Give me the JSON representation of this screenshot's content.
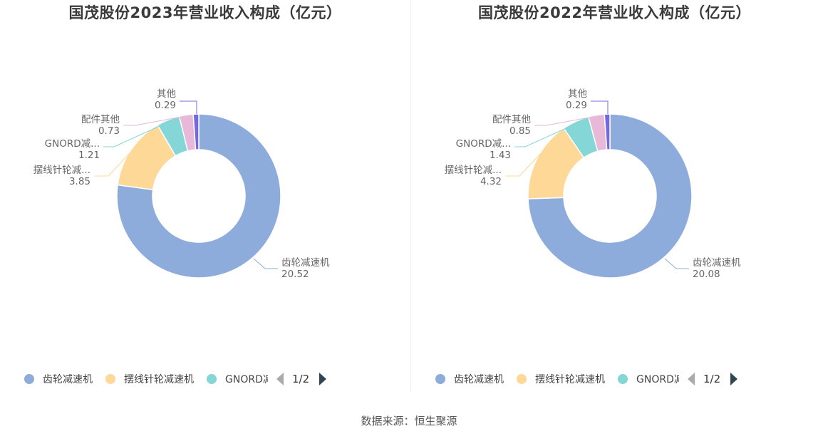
{
  "source": "数据来源：恒生聚源",
  "charts": [
    {
      "title": "国茂股份2023年营业收入构成（亿元）",
      "legend": [
        "齿轮减速机",
        "摆线针轮减速机",
        "GNORD减"
      ],
      "pager": "1/2",
      "slice_names": [
        "齿轮减速机",
        "摆线针轮减...",
        "GNORD减...",
        "配件其他",
        "其他"
      ]
    },
    {
      "title": "国茂股份2022年营业收入构成（亿元）",
      "legend": [
        "齿轮减速机",
        "摆线针轮减速机",
        "GNORD减"
      ],
      "pager": "1/2",
      "slice_names": [
        "齿轮减速机",
        "摆线针轮减...",
        "GNORD减...",
        "配件其他",
        "其他"
      ]
    }
  ],
  "colors": [
    "#8eacdb",
    "#fdd897",
    "#85d6d6",
    "#e7b8d8",
    "#7468e0"
  ],
  "chart_data": [
    {
      "type": "pie",
      "title": "国茂股份2023年营业收入构成（亿元）",
      "categories": [
        "齿轮减速机",
        "摆线针轮减速机",
        "GNORD减速机",
        "配件其他",
        "其他"
      ],
      "values": [
        20.52,
        3.85,
        1.21,
        0.73,
        0.29
      ],
      "value_labels": [
        "20.52",
        "3.85",
        "1.21",
        "0.73",
        "0.29"
      ],
      "legend_position": "bottom"
    },
    {
      "type": "pie",
      "title": "国茂股份2022年营业收入构成（亿元）",
      "categories": [
        "齿轮减速机",
        "摆线针轮减速机",
        "GNORD减速机",
        "配件其他",
        "其他"
      ],
      "values": [
        20.08,
        4.32,
        1.43,
        0.85,
        0.29
      ],
      "value_labels": [
        "20.08",
        "4.32",
        "1.43",
        "0.85",
        "0.29"
      ],
      "legend_position": "bottom"
    }
  ]
}
